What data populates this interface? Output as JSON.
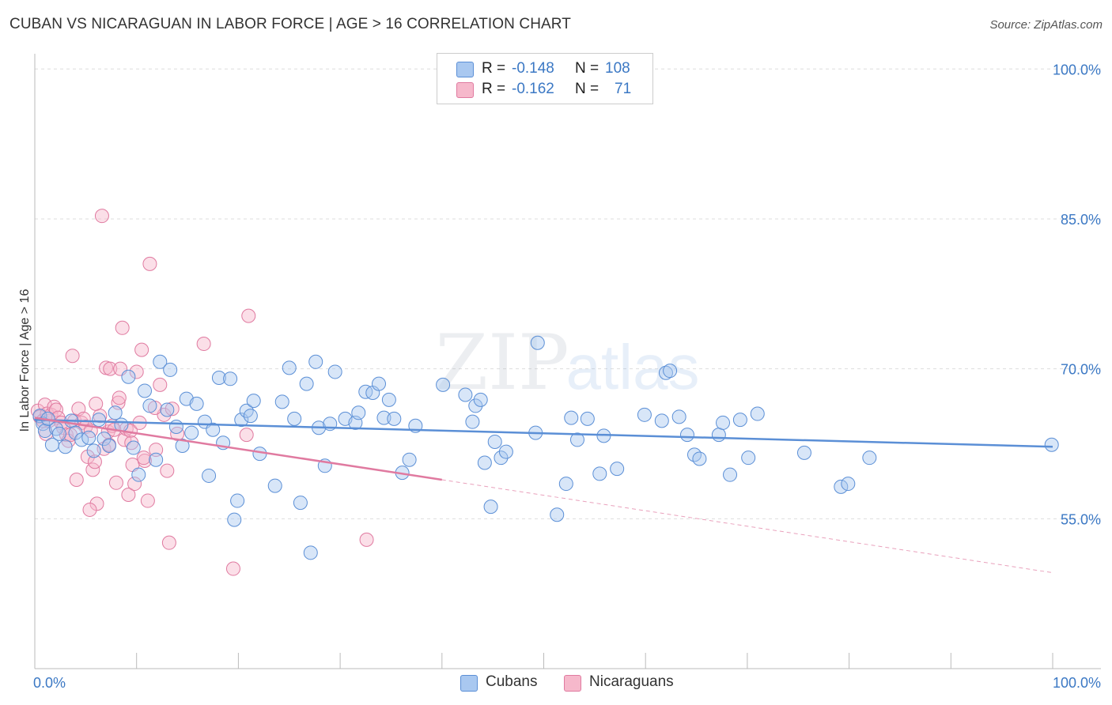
{
  "title": "CUBAN VS NICARAGUAN IN LABOR FORCE | AGE > 16 CORRELATION CHART",
  "source": "Source: ZipAtlas.com",
  "watermark": {
    "zip": "ZIP",
    "atlas": "atlas"
  },
  "legend": {
    "r_label": "R =",
    "n_label": "N =",
    "rows": [
      {
        "r": "-0.148",
        "n": "108",
        "color": "#a9c8f0",
        "border": "#5b8fd6"
      },
      {
        "r": "-0.162",
        "n": "71",
        "color": "#f6b8cb",
        "border": "#e07aa0"
      }
    ]
  },
  "bottom_legend": [
    {
      "label": "Cubans",
      "color": "#a9c8f0",
      "border": "#5b8fd6"
    },
    {
      "label": "Nicaraguans",
      "color": "#f6b8cb",
      "border": "#e07aa0"
    }
  ],
  "chart_data": {
    "type": "scatter",
    "title": "CUBAN VS NICARAGUAN IN LABOR FORCE | AGE > 16 CORRELATION CHART",
    "xlabel": "",
    "ylabel": "In Labor Force | Age > 16",
    "xlim": [
      0,
      100
    ],
    "ylim": [
      40,
      102
    ],
    "x_tick_labels": [
      "0.0%",
      "100.0%"
    ],
    "y_ticks": [
      55,
      70,
      85,
      100
    ],
    "y_tick_labels": [
      "55.0%",
      "70.0%",
      "85.0%",
      "100.0%"
    ],
    "grid": true,
    "series": [
      {
        "name": "Cubans",
        "color": "#5b8fd6",
        "fill": "rgba(169,200,240,0.45)",
        "trend": {
          "x0": 0,
          "y0": 64.9,
          "x1": 100,
          "y1": 62.2,
          "dashed_from": null
        },
        "points": [
          [
            0.5,
            65.3
          ],
          [
            0.8,
            64.5
          ],
          [
            1.0,
            63.8
          ],
          [
            1.3,
            65.0
          ],
          [
            1.7,
            62.4
          ],
          [
            2.1,
            64.0
          ],
          [
            2.4,
            63.5
          ],
          [
            3.0,
            62.2
          ],
          [
            3.6,
            64.8
          ],
          [
            4.0,
            63.6
          ],
          [
            4.6,
            62.9
          ],
          [
            5.3,
            63.1
          ],
          [
            5.8,
            61.8
          ],
          [
            6.3,
            64.9
          ],
          [
            6.8,
            63.0
          ],
          [
            7.3,
            62.3
          ],
          [
            7.9,
            65.6
          ],
          [
            8.5,
            64.4
          ],
          [
            9.2,
            69.2
          ],
          [
            9.7,
            62.1
          ],
          [
            10.2,
            59.4
          ],
          [
            10.8,
            67.8
          ],
          [
            11.3,
            66.3
          ],
          [
            11.9,
            60.9
          ],
          [
            12.3,
            70.7
          ],
          [
            13.0,
            65.9
          ],
          [
            13.3,
            69.9
          ],
          [
            13.9,
            64.2
          ],
          [
            14.5,
            62.3
          ],
          [
            14.9,
            67.0
          ],
          [
            15.4,
            63.6
          ],
          [
            15.9,
            66.5
          ],
          [
            16.7,
            64.7
          ],
          [
            17.1,
            59.3
          ],
          [
            17.5,
            63.9
          ],
          [
            18.1,
            69.1
          ],
          [
            18.5,
            62.6
          ],
          [
            19.2,
            69.0
          ],
          [
            19.6,
            54.9
          ],
          [
            19.9,
            56.8
          ],
          [
            20.3,
            64.9
          ],
          [
            20.8,
            65.8
          ],
          [
            21.2,
            65.3
          ],
          [
            21.5,
            66.8
          ],
          [
            22.1,
            61.5
          ],
          [
            23.6,
            58.3
          ],
          [
            24.3,
            66.7
          ],
          [
            25.0,
            70.1
          ],
          [
            25.5,
            65.0
          ],
          [
            26.1,
            56.6
          ],
          [
            26.7,
            68.5
          ],
          [
            27.1,
            51.6
          ],
          [
            27.6,
            70.7
          ],
          [
            27.9,
            64.1
          ],
          [
            28.5,
            60.3
          ],
          [
            29.0,
            64.5
          ],
          [
            29.5,
            69.7
          ],
          [
            30.5,
            65.0
          ],
          [
            31.5,
            64.6
          ],
          [
            31.8,
            65.6
          ],
          [
            32.5,
            67.7
          ],
          [
            33.2,
            67.6
          ],
          [
            33.8,
            68.5
          ],
          [
            34.3,
            65.1
          ],
          [
            34.8,
            66.9
          ],
          [
            35.3,
            65.0
          ],
          [
            36.1,
            59.6
          ],
          [
            36.8,
            60.9
          ],
          [
            37.4,
            64.3
          ],
          [
            40.1,
            68.4
          ],
          [
            42.3,
            67.4
          ],
          [
            43.0,
            64.7
          ],
          [
            43.3,
            66.3
          ],
          [
            43.8,
            66.9
          ],
          [
            44.2,
            60.6
          ],
          [
            44.8,
            56.2
          ],
          [
            45.2,
            62.7
          ],
          [
            45.8,
            61.1
          ],
          [
            46.3,
            61.7
          ],
          [
            49.2,
            63.6
          ],
          [
            49.4,
            72.6
          ],
          [
            51.3,
            55.4
          ],
          [
            52.2,
            58.5
          ],
          [
            52.7,
            65.1
          ],
          [
            53.3,
            62.9
          ],
          [
            54.3,
            65.0
          ],
          [
            55.5,
            59.5
          ],
          [
            55.9,
            63.3
          ],
          [
            57.2,
            60.0
          ],
          [
            59.9,
            65.4
          ],
          [
            61.6,
            64.8
          ],
          [
            62.0,
            69.6
          ],
          [
            62.4,
            69.8
          ],
          [
            63.3,
            65.2
          ],
          [
            64.1,
            63.4
          ],
          [
            64.8,
            61.4
          ],
          [
            65.3,
            61.0
          ],
          [
            67.2,
            63.4
          ],
          [
            67.6,
            64.6
          ],
          [
            68.3,
            59.4
          ],
          [
            69.3,
            64.9
          ],
          [
            70.1,
            61.1
          ],
          [
            71.0,
            65.5
          ],
          [
            75.6,
            61.6
          ],
          [
            79.2,
            58.2
          ],
          [
            79.9,
            58.5
          ],
          [
            82.0,
            61.1
          ],
          [
            99.9,
            62.4
          ]
        ]
      },
      {
        "name": "Nicaraguans",
        "color": "#e07aa0",
        "fill": "rgba(246,184,203,0.45)",
        "trend": {
          "x0": 0,
          "y0": 65.1,
          "x1": 100,
          "y1": 49.6,
          "dashed_from": 40
        },
        "points": [
          [
            0.3,
            65.8
          ],
          [
            0.5,
            65.2
          ],
          [
            0.8,
            64.8
          ],
          [
            1.0,
            66.4
          ],
          [
            1.2,
            65.5
          ],
          [
            1.4,
            64.8
          ],
          [
            1.6,
            65.4
          ],
          [
            1.9,
            66.2
          ],
          [
            2.1,
            65.9
          ],
          [
            2.3,
            65.1
          ],
          [
            2.6,
            64.6
          ],
          [
            2.8,
            64.1
          ],
          [
            3.1,
            63.4
          ],
          [
            3.3,
            62.8
          ],
          [
            3.5,
            63.4
          ],
          [
            3.7,
            71.3
          ],
          [
            3.9,
            64.8
          ],
          [
            4.1,
            58.9
          ],
          [
            4.3,
            66.0
          ],
          [
            4.6,
            64.6
          ],
          [
            4.8,
            65.0
          ],
          [
            5.0,
            64.2
          ],
          [
            5.2,
            61.2
          ],
          [
            5.5,
            63.8
          ],
          [
            5.7,
            59.9
          ],
          [
            5.9,
            60.7
          ],
          [
            6.1,
            56.5
          ],
          [
            6.4,
            65.3
          ],
          [
            6.6,
            85.3
          ],
          [
            6.8,
            62.0
          ],
          [
            7.0,
            70.1
          ],
          [
            7.2,
            63.7
          ],
          [
            7.4,
            70.0
          ],
          [
            7.6,
            64.3
          ],
          [
            7.8,
            63.9
          ],
          [
            8.0,
            58.6
          ],
          [
            8.2,
            66.6
          ],
          [
            8.4,
            70.0
          ],
          [
            8.6,
            74.1
          ],
          [
            8.8,
            62.9
          ],
          [
            9.0,
            64.0
          ],
          [
            9.2,
            57.4
          ],
          [
            9.4,
            63.8
          ],
          [
            9.6,
            60.4
          ],
          [
            9.8,
            58.5
          ],
          [
            10.0,
            69.7
          ],
          [
            10.3,
            64.6
          ],
          [
            10.5,
            71.9
          ],
          [
            10.8,
            60.8
          ],
          [
            11.1,
            56.8
          ],
          [
            11.3,
            80.5
          ],
          [
            11.9,
            61.9
          ],
          [
            12.3,
            68.4
          ],
          [
            12.7,
            65.4
          ],
          [
            13.0,
            59.8
          ],
          [
            13.2,
            52.6
          ],
          [
            13.5,
            66.0
          ],
          [
            14.0,
            63.5
          ],
          [
            16.6,
            72.5
          ],
          [
            19.5,
            50.0
          ],
          [
            20.8,
            63.4
          ],
          [
            21.0,
            75.3
          ],
          [
            5.4,
            55.9
          ],
          [
            6.0,
            66.5
          ],
          [
            7.3,
            62.4
          ],
          [
            8.3,
            67.1
          ],
          [
            9.5,
            62.6
          ],
          [
            10.7,
            61.1
          ],
          [
            11.8,
            66.1
          ],
          [
            32.6,
            52.9
          ],
          [
            1.1,
            63.5
          ]
        ]
      }
    ]
  }
}
